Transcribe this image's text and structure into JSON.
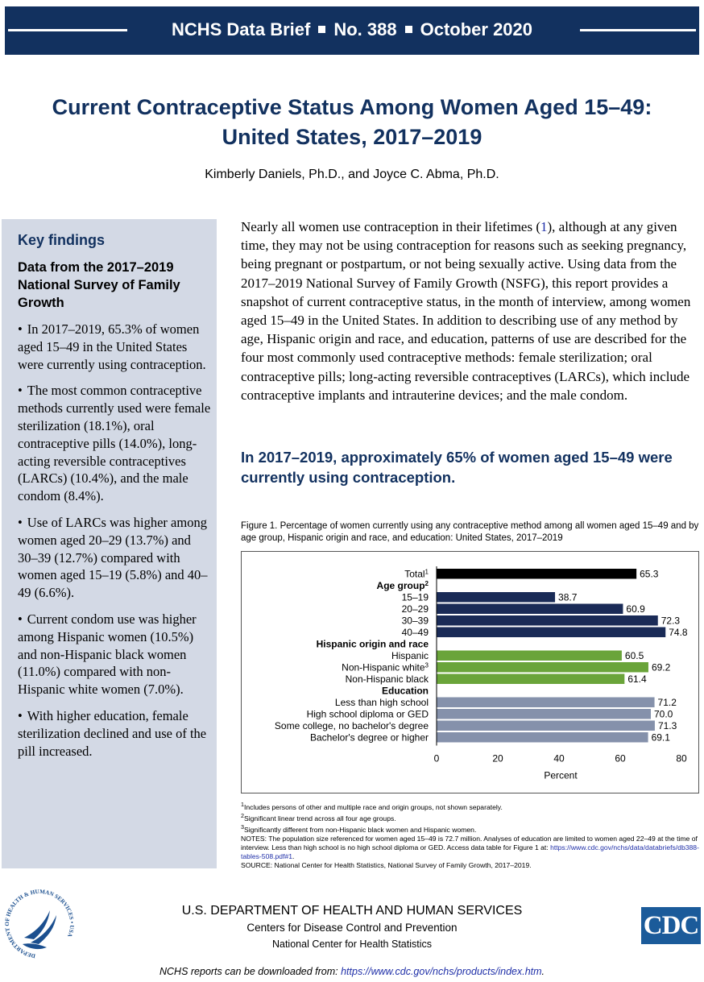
{
  "header": {
    "series": "NCHS Data Brief",
    "number": "No. 388",
    "date": "October 2020"
  },
  "title_line1": "Current Contraceptive Status Among Women Aged 15–49:",
  "title_line2": "United States, 2017–2019",
  "authors": "Kimberly Daniels, Ph.D., and Joyce C. Abma, Ph.D.",
  "key_findings": {
    "heading": "Key findings",
    "subheading": "Data from the 2017–2019 National Survey of Family Growth",
    "items": [
      "In 2017–2019, 65.3% of women aged 15–49 in the United States were currently using contraception.",
      "The most common contraceptive methods currently used were female sterilization (18.1%), oral contraceptive pills (14.0%), long-acting reversible contraceptives (LARCs) (10.4%), and the male condom (8.4%).",
      "Use of LARCs was higher among women aged 20–29 (13.7%) and 30–39 (12.7%) compared with women aged 15–19 (5.8%) and 40–49 (6.6%).",
      "Current condom use was higher among Hispanic women (10.5%) and non-Hispanic black women (11.0%) compared with non-Hispanic white women (7.0%).",
      "With higher education, female sterilization declined and use of the pill increased."
    ]
  },
  "intro": {
    "part1": "Nearly all women use contraception in their lifetimes (",
    "ref": "1",
    "part2": "), although at any given time, they may not be using contraception for reasons such as seeking pregnancy, being pregnant or postpartum, or not being sexually active. Using data from the 2017–2019 National Survey of Family Growth (NSFG), this report provides a snapshot of current contraceptive status, in the month of interview, among women aged 15–49 in the United States. In addition to describing use of any method by age, Hispanic origin and race, and education, patterns of use are described for the four most commonly used contraceptive methods: female sterilization; oral contraceptive pills; long-acting reversible contraceptives (LARCs), which include contraceptive implants and intrauterine devices; and the male condom."
  },
  "section_heading": "In 2017–2019, approximately 65% of women aged 15–49 were currently using contraception.",
  "figure_caption": "Figure 1. Percentage of women currently using any contraceptive method among all women aged 15–49 and by age group, Hispanic origin and race, and education: United States, 2017–2019",
  "chart_data": {
    "type": "bar",
    "orientation": "horizontal",
    "xlabel": "Percent",
    "xlim": [
      0,
      80
    ],
    "xticks": [
      0,
      20,
      40,
      60,
      80
    ],
    "grid": false,
    "colors": {
      "total": "#000000",
      "age": "#1a2b57",
      "hispanic": "#6aa43a",
      "education": "#8591ab"
    },
    "rows": [
      {
        "label": "Total",
        "sup": "1",
        "value": 65.3,
        "value_label": "65.3",
        "group": "total"
      },
      {
        "label": "Age group",
        "sup": "2",
        "header": true
      },
      {
        "label": "15–19",
        "value": 38.7,
        "value_label": "38.7",
        "group": "age"
      },
      {
        "label": "20–29",
        "value": 60.9,
        "value_label": "60.9",
        "group": "age"
      },
      {
        "label": "30–39",
        "value": 72.3,
        "value_label": "72.3",
        "group": "age"
      },
      {
        "label": "40–49",
        "value": 74.8,
        "value_label": "74.8",
        "group": "age"
      },
      {
        "label": "Hispanic origin and race",
        "header": true
      },
      {
        "label": "Hispanic",
        "value": 60.5,
        "value_label": "60.5",
        "group": "hispanic"
      },
      {
        "label": "Non-Hispanic white",
        "sup": "3",
        "value": 69.2,
        "value_label": "69.2",
        "group": "hispanic"
      },
      {
        "label": "Non-Hispanic black",
        "value": 61.4,
        "value_label": "61.4",
        "group": "hispanic"
      },
      {
        "label": "Education",
        "header": true
      },
      {
        "label": "Less than high school",
        "value": 71.2,
        "value_label": "71.2",
        "group": "education"
      },
      {
        "label": "High school diploma or GED",
        "value": 70.0,
        "value_label": "70.0",
        "group": "education"
      },
      {
        "label": "Some college, no bachelor's degree",
        "value": 71.3,
        "value_label": "71.3",
        "group": "education"
      },
      {
        "label": "Bachelor's degree or higher",
        "value": 69.1,
        "value_label": "69.1",
        "group": "education"
      }
    ]
  },
  "notes": {
    "n1": "Includes persons of other and multiple race and origin groups, not shown separately.",
    "n2": "Significant linear trend across all four age groups.",
    "n3": "Significantly different from non-Hispanic black women and Hispanic women.",
    "notes_text": "NOTES: The population size referenced for women aged 15–49 is 72.7 million. Analyses of education are limited to women aged 22–49 at the time of interview. Less than high school is no high school diploma or GED. Access data table for Figure 1 at: ",
    "notes_link": "https://www.cdc.gov/nchs/data/databriefs/db388-tables-508.pdf#1",
    "source": "SOURCE: National Center for Health Statistics, National Survey of Family Growth, 2017–2019."
  },
  "footer": {
    "dept": "U.S. DEPARTMENT OF HEALTH AND HUMAN SERVICES",
    "cdc_name": "Centers for Disease Control and Prevention",
    "nchs_name": "National Center for Health Statistics",
    "download_text": "NCHS reports can be downloaded from: ",
    "download_link": "https://www.cdc.gov/nchs/products/index.htm",
    "hhs_seal_text": "DEPARTMENT OF HEALTH & HUMAN SERVICES • USA",
    "cdc_logo_text": "CDC"
  }
}
